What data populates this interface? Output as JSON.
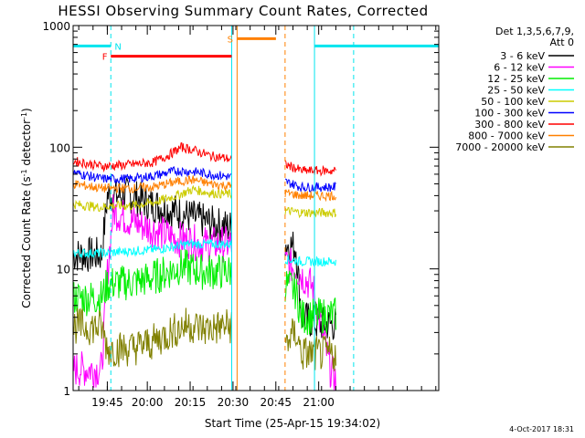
{
  "chart_data": {
    "type": "line",
    "title": "HESSI Observing Summary Count Rates, Corrected",
    "xlabel": "Start Time (25-Apr-15 19:34:02)",
    "ylabel": "Corrected Count Rate (s⁻¹ detector⁻¹)",
    "ylabel_parts": [
      "Corrected Count Rate (s",
      "-1",
      " detector",
      "-1",
      ")"
    ],
    "yscale": "log",
    "ylim": [
      1,
      1000
    ],
    "xlim_minutes": [
      0,
      128
    ],
    "x_tick_minutes": [
      11.97,
      25.97,
      40.97,
      55.97,
      70.97,
      85.97
    ],
    "x_tick_labels": [
      "19:45",
      "20:00",
      "20:15",
      "20:30",
      "20:45",
      "21:00"
    ],
    "y_tick_values": [
      1,
      10,
      100,
      1000
    ],
    "y_tick_labels": [
      "1",
      "10",
      "100",
      "1000"
    ],
    "legend_header": [
      "Det 1,3,5,6,7,9,",
      "Att 0"
    ],
    "legend_position": "right",
    "gaps_minutes": [
      [
        55.5,
        74.2
      ]
    ],
    "series": [
      {
        "name": "3 - 6 keV",
        "color": "#000000",
        "points": [
          [
            0,
            13
          ],
          [
            10,
            13
          ],
          [
            12,
            40
          ],
          [
            20,
            40
          ],
          [
            26,
            35
          ],
          [
            35,
            30
          ],
          [
            45,
            25
          ],
          [
            50,
            23
          ],
          [
            55,
            22
          ],
          [
            74.5,
            16
          ],
          [
            78,
            15
          ],
          [
            80,
            4
          ],
          [
            86,
            3.5
          ],
          [
            92,
            3.5
          ]
        ]
      },
      {
        "name": "6 - 12 keV",
        "color": "#ff00ff",
        "points": [
          [
            0,
            1.5
          ],
          [
            10,
            1.5
          ],
          [
            12,
            9
          ],
          [
            14,
            30
          ],
          [
            20,
            25
          ],
          [
            26,
            22
          ],
          [
            35,
            18
          ],
          [
            45,
            16
          ],
          [
            55,
            16
          ],
          [
            74.5,
            11
          ],
          [
            78,
            10
          ],
          [
            84,
            7
          ],
          [
            90,
            1.5
          ],
          [
            92,
            1.2
          ]
        ]
      },
      {
        "name": "12 - 25 keV",
        "color": "#00ee00",
        "points": [
          [
            0,
            5.8
          ],
          [
            10,
            5.8
          ],
          [
            12,
            7.5
          ],
          [
            22,
            7.8
          ],
          [
            28,
            8.5
          ],
          [
            38,
            10.5
          ],
          [
            45,
            9.5
          ],
          [
            55,
            9.5
          ],
          [
            74.5,
            7.5
          ],
          [
            78,
            6.5
          ],
          [
            80,
            4
          ],
          [
            92,
            4.2
          ]
        ]
      },
      {
        "name": "25 - 50 keV",
        "color": "#00ffff",
        "points": [
          [
            0,
            13.5
          ],
          [
            10,
            13.5
          ],
          [
            12,
            13.5
          ],
          [
            20,
            14
          ],
          [
            30,
            14.5
          ],
          [
            40,
            16
          ],
          [
            48,
            16
          ],
          [
            55,
            16
          ],
          [
            74.5,
            12
          ],
          [
            80,
            11.5
          ],
          [
            92,
            11.5
          ]
        ]
      },
      {
        "name": "50 - 100 keV",
        "color": "#cccc00",
        "points": [
          [
            0,
            34
          ],
          [
            10,
            32
          ],
          [
            12,
            33
          ],
          [
            20,
            33
          ],
          [
            28,
            35
          ],
          [
            36,
            40
          ],
          [
            42,
            45
          ],
          [
            48,
            42
          ],
          [
            55,
            41
          ],
          [
            74.5,
            30
          ],
          [
            80,
            29
          ],
          [
            92,
            29
          ]
        ]
      },
      {
        "name": "100 - 300 keV",
        "color": "#0000ff",
        "points": [
          [
            0,
            62
          ],
          [
            10,
            55
          ],
          [
            12,
            55
          ],
          [
            20,
            55
          ],
          [
            28,
            58
          ],
          [
            36,
            64
          ],
          [
            42,
            63
          ],
          [
            48,
            60
          ],
          [
            55,
            57
          ],
          [
            74.5,
            52
          ],
          [
            80,
            47
          ],
          [
            92,
            47
          ]
        ]
      },
      {
        "name": "300 - 800 keV",
        "color": "#ff0000",
        "points": [
          [
            0,
            77
          ],
          [
            10,
            70
          ],
          [
            12,
            70
          ],
          [
            20,
            72
          ],
          [
            28,
            75
          ],
          [
            33,
            85
          ],
          [
            38,
            100
          ],
          [
            42,
            95
          ],
          [
            48,
            85
          ],
          [
            55,
            80
          ],
          [
            74.5,
            72
          ],
          [
            80,
            64
          ],
          [
            92,
            64
          ]
        ]
      },
      {
        "name": "800 - 7000 keV",
        "color": "#ff8000",
        "points": [
          [
            0,
            50
          ],
          [
            10,
            46
          ],
          [
            12,
            46
          ],
          [
            20,
            46
          ],
          [
            28,
            47
          ],
          [
            36,
            52
          ],
          [
            42,
            54
          ],
          [
            48,
            50
          ],
          [
            55,
            48
          ],
          [
            74.5,
            42
          ],
          [
            80,
            40
          ],
          [
            92,
            40
          ]
        ]
      },
      {
        "name": "7000 - 20000 keV",
        "color": "#808000",
        "points": [
          [
            0,
            3.4
          ],
          [
            10,
            3.3
          ],
          [
            12,
            2.2
          ],
          [
            20,
            2.2
          ],
          [
            28,
            2.5
          ],
          [
            34,
            3
          ],
          [
            40,
            3.5
          ],
          [
            46,
            3.2
          ],
          [
            55,
            3.4
          ],
          [
            74.5,
            2.5
          ],
          [
            78,
            3
          ],
          [
            80,
            2
          ],
          [
            92,
            2
          ]
        ]
      }
    ],
    "flags": [
      {
        "label": "N",
        "color": "#00e5ee",
        "level": 680,
        "intervals": [
          [
            0,
            13.2
          ],
          [
            84.5,
            128
          ]
        ],
        "label_at": 14.5,
        "label_side": "right"
      },
      {
        "label": "F",
        "color": "#ff0000",
        "level": 560,
        "intervals": [
          [
            13.2,
            55.5
          ]
        ],
        "label_at": 12.0,
        "label_side": "left"
      },
      {
        "label": "S",
        "color": "#ff8000",
        "level": 780,
        "intervals": [
          [
            57.5,
            71
          ]
        ],
        "label_at": 56.0,
        "label_side": "left"
      }
    ],
    "vertical_markers": [
      {
        "x": 13.2,
        "color": "#00e5ee",
        "style": "dashed"
      },
      {
        "x": 55.5,
        "color": "#00e5ee",
        "style": "solid"
      },
      {
        "x": 57.4,
        "color": "#ff8000",
        "style": "solid"
      },
      {
        "x": 74.2,
        "color": "#ff8000",
        "style": "dashed"
      },
      {
        "x": 84.5,
        "color": "#00e5ee",
        "style": "solid"
      },
      {
        "x": 98.2,
        "color": "#00e5ee",
        "style": "dashed"
      }
    ]
  },
  "timestamp": "4-Oct-2017 18:31"
}
